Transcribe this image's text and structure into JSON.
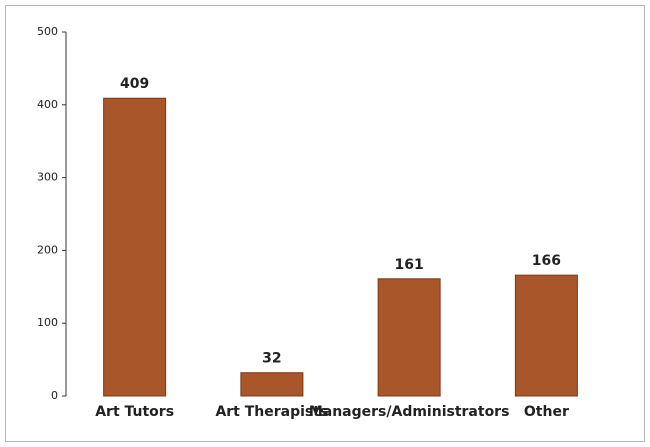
{
  "chart_data": {
    "type": "bar",
    "categories": [
      "Art Tutors",
      "Art Therapists",
      "Managers/Administrators",
      "Other"
    ],
    "values": [
      409,
      32,
      161,
      166
    ],
    "color": "#a9572a",
    "ylim": [
      0,
      500
    ],
    "yticks": [
      0,
      100,
      200,
      300,
      400,
      500
    ],
    "grid": false
  }
}
